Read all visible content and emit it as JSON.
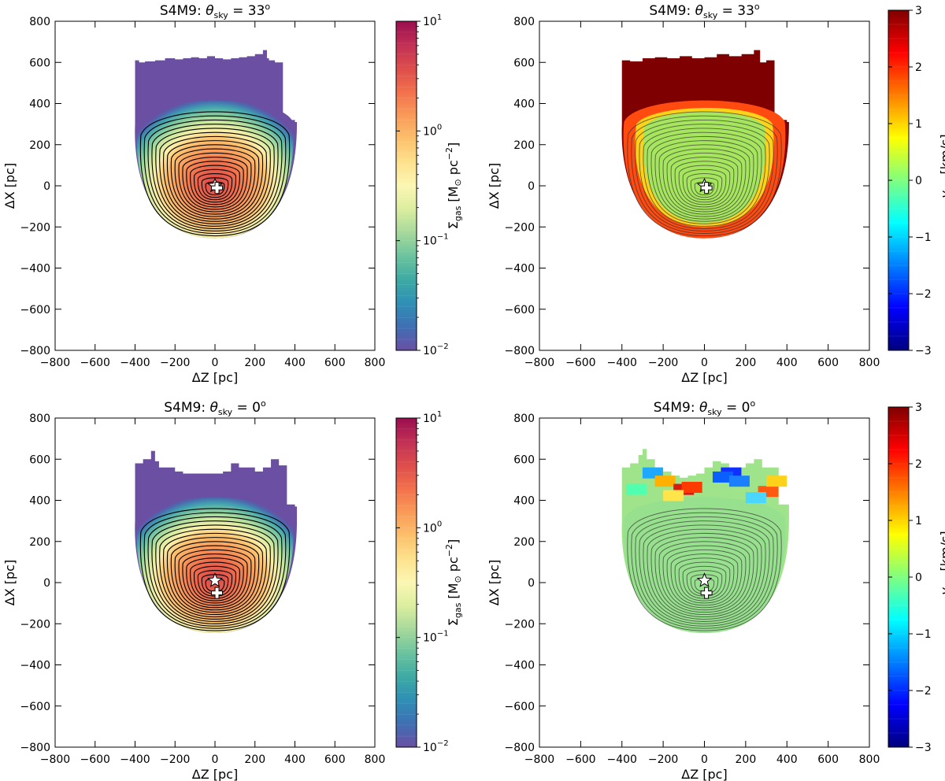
{
  "chart_data": [
    {
      "type": "heatmap",
      "panel": "gas-density",
      "title": {
        "prefix": "S4M9:  ",
        "theta": "θ",
        "sub": "sky",
        "eq": " = 33",
        "deg": "o"
      },
      "xlabel": "ΔZ [pc]",
      "ylabel": "ΔX [pc]",
      "xlim": [
        -800,
        800
      ],
      "ylim": [
        -800,
        800
      ],
      "xticks": [
        "−800",
        "−600",
        "−400",
        "−200",
        "0",
        "200",
        "400",
        "600",
        "800"
      ],
      "yticks": [
        "−800",
        "−600",
        "−400",
        "−200",
        "0",
        "200",
        "400",
        "600",
        "800"
      ],
      "colorbar": {
        "scale": "log",
        "range": [
          0.01,
          10
        ],
        "label": {
          "sym": "Σ",
          "sub": "gas",
          "unit": " [M",
          "sun": "⊙",
          "unit2": " pc",
          "exp": "−2",
          "close": "]"
        },
        "ticks": [
          {
            "base": "10",
            "exp": "1"
          },
          {
            "base": "10",
            "exp": "0"
          },
          {
            "base": "10",
            "exp": "−1"
          },
          {
            "base": "10",
            "exp": "−2"
          }
        ]
      },
      "star_marker": [
        0,
        0
      ],
      "plus_marker": [
        10,
        -10
      ],
      "top_edge_profile": {
        "z": [
          -400,
          -380,
          -350,
          -300,
          -250,
          -200,
          -160,
          -120,
          -80,
          -40,
          0,
          40,
          80,
          120,
          160,
          200,
          240,
          260,
          270,
          300,
          340,
          400,
          410
        ],
        "x": [
          600,
          610,
          600,
          605,
          610,
          620,
          615,
          620,
          625,
          620,
          630,
          620,
          615,
          620,
          625,
          630,
          640,
          660,
          620,
          610,
          600,
          320,
          310
        ]
      },
      "bottom_edge_x": -255
    },
    {
      "type": "heatmap",
      "panel": "los-velocity",
      "title": {
        "prefix": "S4M9:  ",
        "theta": "θ",
        "sub": "sky",
        "eq": " = 33",
        "deg": "o"
      },
      "xlabel": "ΔZ [pc]",
      "ylabel": "ΔX [pc]",
      "xlim": [
        -800,
        800
      ],
      "ylim": [
        -800,
        800
      ],
      "xticks": [
        "−800",
        "−600",
        "−400",
        "−200",
        "0",
        "200",
        "400",
        "600",
        "800"
      ],
      "yticks": [
        "−800",
        "−600",
        "−400",
        "−200",
        "0",
        "200",
        "400",
        "600",
        "800"
      ],
      "colorbar": {
        "scale": "linear",
        "range": [
          -3,
          3
        ],
        "label": {
          "sym": "v",
          "sub": "los",
          "unit": " [km/s]"
        },
        "ticks": [
          "3",
          "2",
          "1",
          "0",
          "−1",
          "−2",
          "−3"
        ]
      },
      "star_marker": [
        0,
        0
      ],
      "plus_marker": [
        10,
        -10
      ],
      "top_edge_profile": {
        "z": [
          -400,
          -360,
          -300,
          -240,
          -180,
          -120,
          -60,
          0,
          60,
          120,
          180,
          240,
          270,
          300,
          340,
          400,
          410
        ],
        "x": [
          600,
          610,
          605,
          620,
          625,
          620,
          630,
          620,
          625,
          640,
          630,
          640,
          660,
          600,
          610,
          320,
          310
        ]
      },
      "bottom_edge_x": -255
    },
    {
      "type": "heatmap",
      "panel": "gas-density",
      "title": {
        "prefix": "S4M9:  ",
        "theta": "θ",
        "sub": "sky",
        "eq": " = 0",
        "deg": "o"
      },
      "xlabel": "ΔZ [pc]",
      "ylabel": "ΔX [pc]",
      "xlim": [
        -800,
        800
      ],
      "ylim": [
        -800,
        800
      ],
      "xticks": [
        "−800",
        "−600",
        "−400",
        "−200",
        "0",
        "200",
        "400",
        "600",
        "800"
      ],
      "yticks": [
        "−800",
        "−600",
        "−400",
        "−200",
        "0",
        "200",
        "400",
        "600",
        "800"
      ],
      "colorbar": {
        "scale": "log",
        "range": [
          0.01,
          10
        ],
        "label": {
          "sym": "Σ",
          "sub": "gas",
          "unit": " [M",
          "sun": "⊙",
          "unit2": " pc",
          "exp": "−2",
          "close": "]"
        },
        "ticks": [
          {
            "base": "10",
            "exp": "1"
          },
          {
            "base": "10",
            "exp": "0"
          },
          {
            "base": "10",
            "exp": "−1"
          },
          {
            "base": "10",
            "exp": "−2"
          }
        ]
      },
      "star_marker": [
        0,
        10
      ],
      "plus_marker": [
        10,
        -50
      ],
      "top_edge_profile": {
        "z": [
          -400,
          -360,
          -320,
          -300,
          -280,
          -240,
          -200,
          -160,
          -120,
          -80,
          -40,
          0,
          40,
          80,
          120,
          160,
          200,
          240,
          280,
          320,
          360,
          400,
          410
        ],
        "x": [
          570,
          580,
          600,
          640,
          590,
          560,
          560,
          540,
          530,
          530,
          530,
          530,
          530,
          540,
          580,
          560,
          560,
          540,
          560,
          600,
          570,
          380,
          370
        ]
      },
      "bottom_edge_x": -245
    },
    {
      "type": "heatmap",
      "panel": "los-velocity",
      "title": {
        "prefix": "S4M9:  ",
        "theta": "θ",
        "sub": "sky",
        "eq": " = 0",
        "deg": "o"
      },
      "xlabel": "ΔZ [pc]",
      "ylabel": "ΔX [pc]",
      "xlim": [
        -800,
        800
      ],
      "ylim": [
        -800,
        800
      ],
      "xticks": [
        "−800",
        "−600",
        "−400",
        "−200",
        "0",
        "200",
        "400",
        "600",
        "800"
      ],
      "yticks": [
        "−800",
        "−600",
        "−400",
        "−200",
        "0",
        "200",
        "400",
        "600",
        "800"
      ],
      "colorbar": {
        "scale": "linear",
        "range": [
          -3,
          3
        ],
        "label": {
          "sym": "v",
          "sub": "los",
          "unit": " [km/s]"
        },
        "ticks": [
          "3",
          "2",
          "1",
          "0",
          "−1",
          "−2",
          "−3"
        ]
      },
      "star_marker": [
        0,
        10
      ],
      "plus_marker": [
        10,
        -50
      ],
      "top_edge_profile": {
        "z": [
          -400,
          -360,
          -320,
          -300,
          -280,
          -240,
          -200,
          -160,
          -120,
          -80,
          -40,
          0,
          40,
          80,
          120,
          160,
          200,
          240,
          280,
          320,
          360,
          400,
          410
        ],
        "x": [
          540,
          560,
          580,
          620,
          650,
          600,
          560,
          540,
          520,
          510,
          520,
          530,
          560,
          590,
          580,
          560,
          560,
          580,
          600,
          560,
          560,
          380,
          380
        ]
      },
      "bottom_edge_x": -245
    }
  ]
}
